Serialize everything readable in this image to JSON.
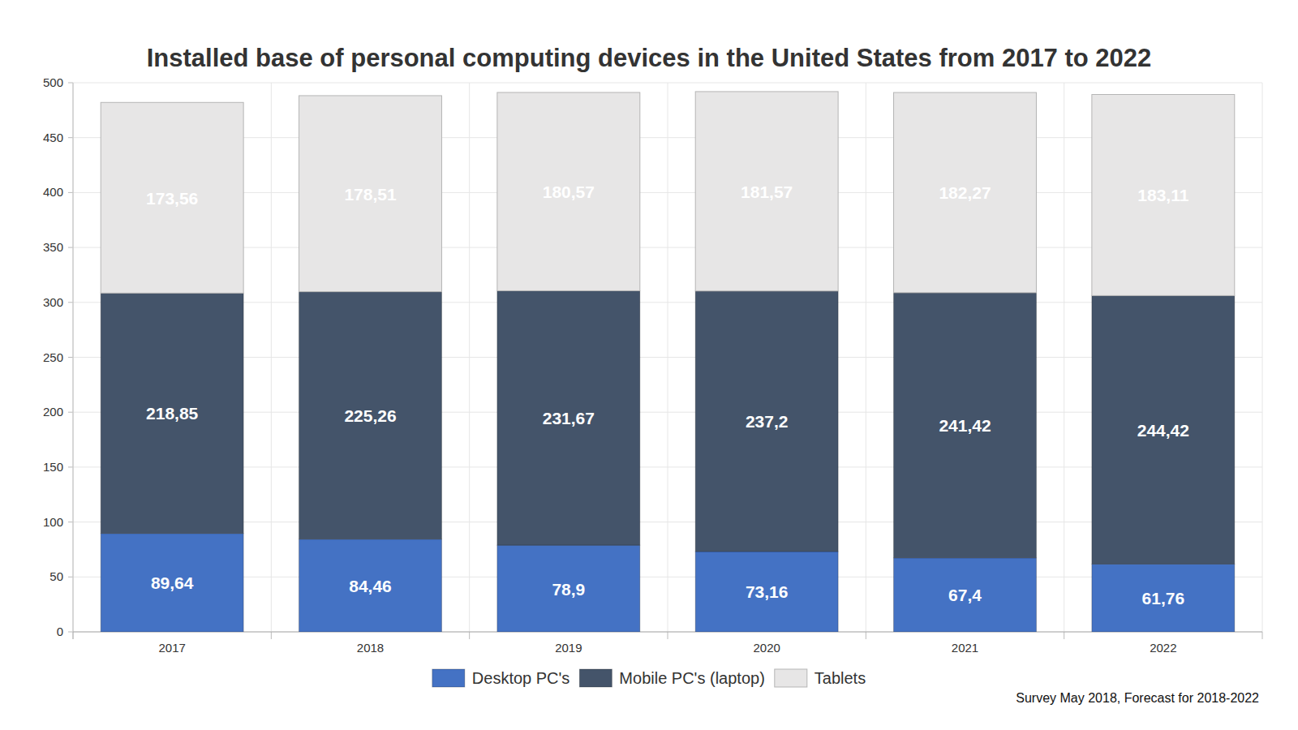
{
  "chart_data": {
    "type": "bar",
    "title": "Installed base of personal computing devices in the United States from 2017 to 2022",
    "categories": [
      "2017",
      "2018",
      "2019",
      "2020",
      "2021",
      "2022"
    ],
    "series": [
      {
        "name": "Desktop PC's",
        "color": "#4472c4",
        "values": [
          89.64,
          84.46,
          78.9,
          73.16,
          67.4,
          61.76
        ],
        "value_labels": [
          "89,64",
          "84,46",
          "78,9",
          "73,16",
          "67,4",
          "61,76"
        ]
      },
      {
        "name": "Mobile PC's (laptop)",
        "color": "#44546a",
        "values": [
          218.85,
          225.26,
          231.67,
          237.2,
          241.42,
          244.42
        ],
        "value_labels": [
          "218,85",
          "225,26",
          "231,67",
          "237,2",
          "241,42",
          "244,42"
        ]
      },
      {
        "name": "Tablets",
        "color": "#e7e6e6",
        "values": [
          173.56,
          178.51,
          180.57,
          181.57,
          182.27,
          183.11
        ],
        "value_labels": [
          "173,56",
          "178,51",
          "180,57",
          "181,57",
          "182,27",
          "183,11"
        ]
      }
    ],
    "ylim": [
      0,
      500
    ],
    "yticks": [
      0,
      50,
      100,
      150,
      200,
      250,
      300,
      350,
      400,
      450,
      500
    ],
    "grid": true,
    "stacked": true,
    "data_labels": true,
    "legend": "bottom",
    "annotations": [
      "Survey May 2018, Forecast for 2018-2022"
    ]
  }
}
